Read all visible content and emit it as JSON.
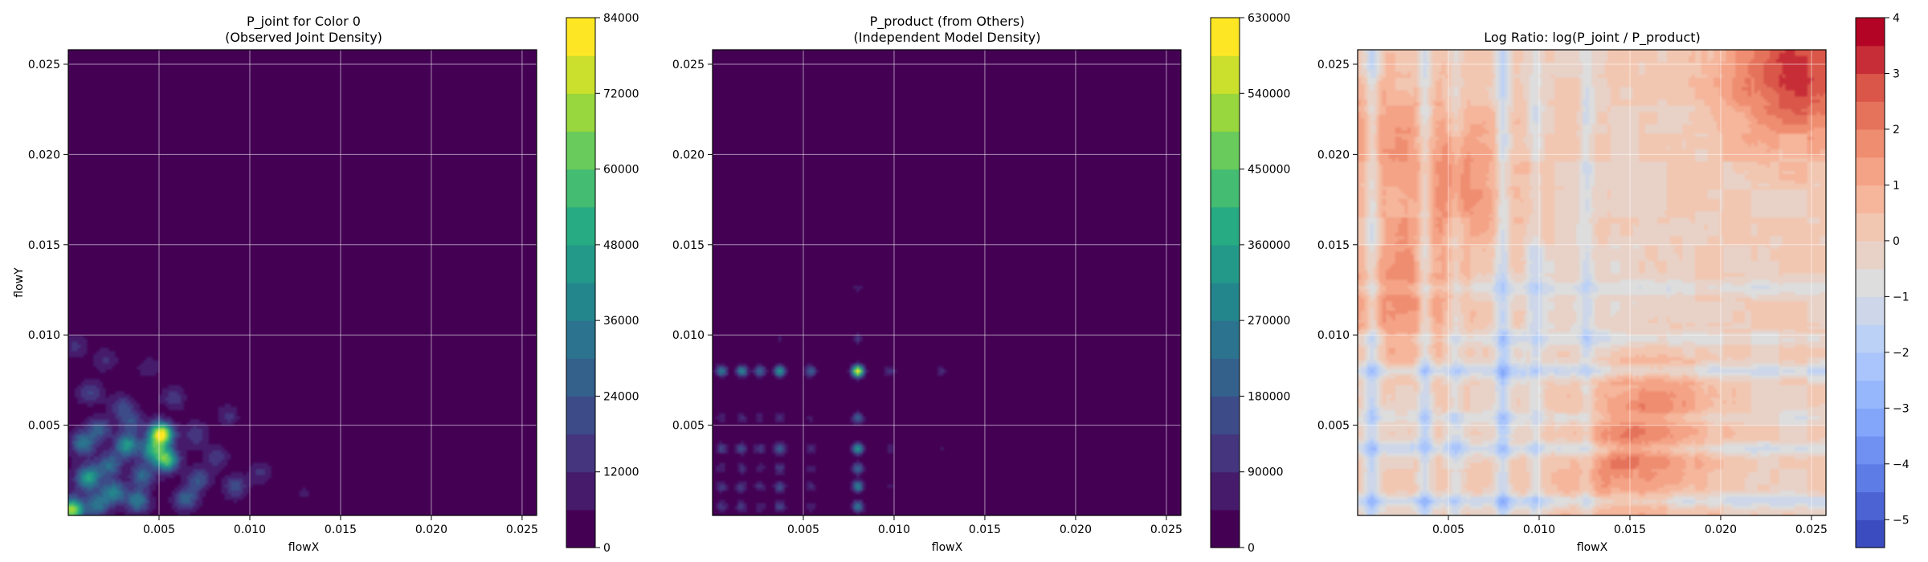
{
  "chart_data": [
    {
      "type": "heatmap",
      "title": "P_joint for Color 0",
      "subtitle": "(Observed Joint Density)",
      "xlabel": "flowX",
      "ylabel": "flowY",
      "xlim": [
        0.0,
        0.0258
      ],
      "ylim": [
        0.0,
        0.0258
      ],
      "x_ticks": [
        "0.005",
        "0.010",
        "0.015",
        "0.020",
        "0.025"
      ],
      "x_tick_values": [
        0.005,
        0.01,
        0.015,
        0.02,
        0.025
      ],
      "y_ticks": [
        "0.005",
        "0.010",
        "0.015",
        "0.020",
        "0.025"
      ],
      "y_tick_values": [
        0.005,
        0.01,
        0.015,
        0.02,
        0.025
      ],
      "grid": true,
      "colormap": "viridis",
      "colorbar_range": [
        0,
        84000
      ],
      "colorbar_ticks": [
        "0",
        "12000",
        "24000",
        "36000",
        "48000",
        "60000",
        "72000",
        "84000"
      ],
      "colorbar_tick_values": [
        0,
        12000,
        24000,
        36000,
        48000,
        60000,
        72000,
        84000
      ],
      "peaks": [
        {
          "x": 0.0002,
          "y": 0.0003,
          "v": 70000
        },
        {
          "x": 0.0051,
          "y": 0.0045,
          "v": 84000
        },
        {
          "x": 0.0054,
          "y": 0.0031,
          "v": 60000
        },
        {
          "x": 0.0011,
          "y": 0.0021,
          "v": 45000
        },
        {
          "x": 0.0032,
          "y": 0.0039,
          "v": 42000
        },
        {
          "x": 0.0046,
          "y": 0.0036,
          "v": 38000
        },
        {
          "x": 0.0025,
          "y": 0.0013,
          "v": 36000
        },
        {
          "x": 0.0038,
          "y": 0.0008,
          "v": 34000
        },
        {
          "x": 0.0008,
          "y": 0.004,
          "v": 32000
        },
        {
          "x": 0.0017,
          "y": 0.0048,
          "v": 26000
        },
        {
          "x": 0.0065,
          "y": 0.0009,
          "v": 26000
        },
        {
          "x": 0.0092,
          "y": 0.0016,
          "v": 20000
        },
        {
          "x": 0.003,
          "y": 0.006,
          "v": 18000
        },
        {
          "x": 0.0058,
          "y": 0.0065,
          "v": 14000
        },
        {
          "x": 0.0012,
          "y": 0.0068,
          "v": 16000
        },
        {
          "x": 0.0082,
          "y": 0.0032,
          "v": 15000
        },
        {
          "x": 0.0045,
          "y": 0.0082,
          "v": 10000
        },
        {
          "x": 0.0088,
          "y": 0.0055,
          "v": 12000
        },
        {
          "x": 0.0106,
          "y": 0.0024,
          "v": 12000
        },
        {
          "x": 0.002,
          "y": 0.0086,
          "v": 11000
        },
        {
          "x": 0.0004,
          "y": 0.0094,
          "v": 12000
        },
        {
          "x": 0.007,
          "y": 0.0045,
          "v": 16000
        },
        {
          "x": 0.013,
          "y": 0.0012,
          "v": 6000
        },
        {
          "x": 0.0023,
          "y": 0.0028,
          "v": 30000
        },
        {
          "x": 0.0041,
          "y": 0.0022,
          "v": 28000
        },
        {
          "x": 0.0016,
          "y": 0.0006,
          "v": 30000
        },
        {
          "x": 0.0072,
          "y": 0.002,
          "v": 22000
        },
        {
          "x": 0.0035,
          "y": 0.0051,
          "v": 20000
        }
      ]
    },
    {
      "type": "heatmap",
      "title": "P_product (from Others)",
      "subtitle": "(Independent Model Density)",
      "xlabel": "flowX",
      "ylabel": "",
      "xlim": [
        0.0,
        0.0258
      ],
      "ylim": [
        0.0,
        0.0258
      ],
      "x_ticks": [
        "0.005",
        "0.010",
        "0.015",
        "0.020",
        "0.025"
      ],
      "x_tick_values": [
        0.005,
        0.01,
        0.015,
        0.02,
        0.025
      ],
      "y_ticks": [
        "0.005",
        "0.010",
        "0.015",
        "0.020",
        "0.025"
      ],
      "y_tick_values": [
        0.005,
        0.01,
        0.015,
        0.02,
        0.025
      ],
      "grid": true,
      "colormap": "viridis",
      "colorbar_range": [
        0,
        630000
      ],
      "colorbar_ticks": [
        "0",
        "90000",
        "180000",
        "270000",
        "360000",
        "450000",
        "540000",
        "630000"
      ],
      "colorbar_tick_values": [
        0,
        90000,
        180000,
        270000,
        360000,
        450000,
        540000,
        630000
      ],
      "x_modes": [
        {
          "c": 0.008,
          "w": 1.0
        },
        {
          "c": 0.0037,
          "w": 0.55
        },
        {
          "c": 0.0016,
          "w": 0.45
        },
        {
          "c": 0.0005,
          "w": 0.4
        },
        {
          "c": 0.0026,
          "w": 0.35
        },
        {
          "c": 0.0054,
          "w": 0.3
        },
        {
          "c": 0.0098,
          "w": 0.18
        },
        {
          "c": 0.0126,
          "w": 0.14
        }
      ],
      "y_modes": [
        {
          "c": 0.008,
          "w": 1.0
        },
        {
          "c": 0.0037,
          "w": 0.55
        },
        {
          "c": 0.0016,
          "w": 0.45
        },
        {
          "c": 0.0005,
          "w": 0.4
        },
        {
          "c": 0.0026,
          "w": 0.35
        },
        {
          "c": 0.0054,
          "w": 0.3
        },
        {
          "c": 0.0098,
          "w": 0.15
        },
        {
          "c": 0.0126,
          "w": 0.1
        }
      ]
    },
    {
      "type": "heatmap",
      "title": "Log Ratio: log(P_joint / P_product)",
      "subtitle": "",
      "xlabel": "flowX",
      "ylabel": "",
      "xlim": [
        0.0,
        0.0258
      ],
      "ylim": [
        0.0,
        0.0258
      ],
      "x_ticks": [
        "0.005",
        "0.010",
        "0.015",
        "0.020",
        "0.025"
      ],
      "x_tick_values": [
        0.005,
        0.01,
        0.015,
        0.02,
        0.025
      ],
      "y_ticks": [
        "0.005",
        "0.010",
        "0.015",
        "0.020",
        "0.025"
      ],
      "y_tick_values": [
        0.005,
        0.01,
        0.015,
        0.02,
        0.025
      ],
      "grid": true,
      "colormap": "coolwarm",
      "colorbar_range": [
        -5.5,
        4
      ],
      "colorbar_ticks": [
        "−5",
        "−4",
        "−3",
        "−2",
        "−1",
        "0",
        "1",
        "2",
        "3",
        "4"
      ],
      "colorbar_tick_values": [
        -5,
        -4,
        -3,
        -2,
        -1,
        0,
        1,
        2,
        3,
        4
      ],
      "cold_bands": [
        0.0008,
        0.0037,
        0.008,
        0.0098,
        0.0126,
        0.0054
      ],
      "warm_regions": [
        {
          "x": 0.024,
          "y": 0.0245,
          "v": 2.5
        },
        {
          "x": 0.0055,
          "y": 0.0185,
          "v": 1.5
        },
        {
          "x": 0.016,
          "y": 0.0055,
          "v": 1.6
        },
        {
          "x": 0.0025,
          "y": 0.012,
          "v": 1.8
        },
        {
          "x": 0.001,
          "y": 0.021,
          "v": 1.3
        },
        {
          "x": 0.0145,
          "y": 0.0025,
          "v": 1.2
        }
      ]
    }
  ]
}
